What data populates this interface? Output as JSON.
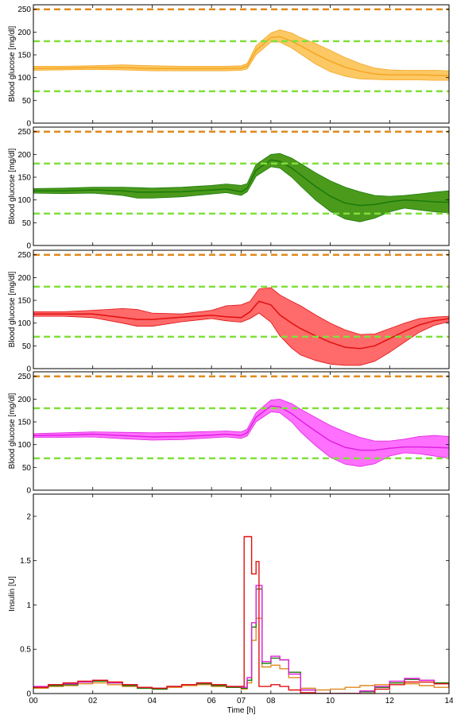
{
  "chart_data": [
    {
      "type": "area",
      "ylabel": "Blood glucose [mg/dl]",
      "ylim": [
        0,
        260
      ],
      "yticks": [
        0,
        50,
        100,
        150,
        200,
        250
      ],
      "xlim": [
        0,
        14
      ],
      "xticks": [
        0,
        2,
        4,
        6,
        7,
        8,
        10,
        12,
        14
      ],
      "xticklabels_shown": false,
      "color": "#f5a623",
      "fill": "#fcc864",
      "thresholds": [
        {
          "value": 250,
          "color": "#e08a1e"
        },
        {
          "value": 180,
          "color": "#7fe03a"
        },
        {
          "value": 70,
          "color": "#7fe03a"
        }
      ],
      "x": [
        0,
        1,
        2,
        3,
        4,
        5,
        6,
        6.5,
        7,
        7.2,
        7.5,
        8,
        8.3,
        8.7,
        9,
        9.5,
        10,
        10.5,
        11,
        11.5,
        12,
        12.5,
        13,
        13.5,
        14
      ],
      "mean": [
        120,
        121,
        122,
        122,
        120,
        120,
        120,
        120,
        121,
        125,
        160,
        188,
        190,
        180,
        170,
        152,
        136,
        123,
        114,
        108,
        106,
        106,
        106,
        105,
        104
      ],
      "lower": [
        116,
        117,
        118,
        117,
        115,
        115,
        115,
        115,
        116,
        119,
        150,
        178,
        178,
        165,
        152,
        130,
        113,
        103,
        97,
        96,
        95,
        95,
        95,
        94,
        94
      ],
      "upper": [
        125,
        125,
        126,
        128,
        126,
        125,
        125,
        125,
        126,
        131,
        170,
        198,
        205,
        198,
        188,
        175,
        160,
        144,
        131,
        121,
        117,
        116,
        116,
        116,
        115
      ]
    },
    {
      "type": "area",
      "ylabel": "Blood glucose [mg/dl]",
      "ylim": [
        0,
        260
      ],
      "yticks": [
        0,
        50,
        100,
        150,
        200,
        250
      ],
      "xlim": [
        0,
        14
      ],
      "xticks": [
        0,
        2,
        4,
        6,
        7,
        8,
        10,
        12,
        14
      ],
      "xticklabels_shown": false,
      "color": "#1a7a0a",
      "fill": "#4c9a1c",
      "thresholds": [
        {
          "value": 250,
          "color": "#e08a1e"
        },
        {
          "value": 180,
          "color": "#7fe03a"
        },
        {
          "value": 70,
          "color": "#7fe03a"
        }
      ],
      "x": [
        0,
        1,
        2,
        3,
        3.5,
        4,
        5,
        6,
        6.5,
        7,
        7.2,
        7.5,
        8,
        8.3,
        8.7,
        9,
        9.5,
        10,
        10.5,
        11,
        11.5,
        12,
        12.5,
        13,
        13.5,
        14
      ],
      "mean": [
        120,
        120,
        122,
        120,
        117,
        117,
        118,
        122,
        124,
        118,
        126,
        165,
        188,
        185,
        170,
        155,
        130,
        108,
        93,
        88,
        90,
        96,
        100,
        98,
        96,
        95
      ],
      "lower": [
        115,
        114,
        115,
        110,
        104,
        104,
        107,
        113,
        116,
        110,
        118,
        152,
        173,
        170,
        150,
        131,
        100,
        75,
        58,
        52,
        60,
        74,
        82,
        78,
        74,
        72
      ],
      "upper": [
        125,
        126,
        128,
        128,
        127,
        126,
        128,
        132,
        135,
        132,
        136,
        178,
        200,
        202,
        192,
        180,
        160,
        142,
        128,
        118,
        110,
        108,
        110,
        113,
        117,
        120
      ]
    },
    {
      "type": "area",
      "ylabel": "Blood glucose [mg/dl]",
      "ylim": [
        0,
        260
      ],
      "yticks": [
        0,
        50,
        100,
        150,
        200,
        250
      ],
      "xlim": [
        0,
        14
      ],
      "xticks": [
        0,
        2,
        4,
        6,
        7,
        8,
        10,
        12,
        14
      ],
      "xticklabels_shown": false,
      "color": "#e01010",
      "fill": "#ff6a6a",
      "thresholds": [
        {
          "value": 250,
          "color": "#e08a1e"
        },
        {
          "value": 180,
          "color": "#7fe03a"
        },
        {
          "value": 70,
          "color": "#7fe03a"
        }
      ],
      "x": [
        0,
        1,
        2,
        3,
        3.5,
        4,
        5,
        6,
        6.5,
        7,
        7.3,
        7.6,
        8,
        8.3,
        8.7,
        9,
        9.5,
        10,
        10.5,
        11,
        11.5,
        12,
        12.5,
        13,
        13.5,
        14
      ],
      "mean": [
        120,
        120,
        120,
        112,
        108,
        108,
        113,
        117,
        114,
        112,
        125,
        148,
        140,
        118,
        100,
        88,
        72,
        58,
        47,
        44,
        50,
        66,
        82,
        96,
        105,
        110
      ],
      "lower": [
        115,
        115,
        112,
        100,
        93,
        93,
        103,
        110,
        105,
        102,
        110,
        122,
        102,
        72,
        45,
        30,
        18,
        10,
        7,
        7,
        16,
        36,
        58,
        80,
        95,
        103
      ],
      "upper": [
        125,
        125,
        128,
        132,
        130,
        122,
        120,
        128,
        138,
        140,
        148,
        175,
        178,
        162,
        148,
        138,
        118,
        100,
        85,
        75,
        76,
        88,
        100,
        110,
        113,
        115
      ]
    },
    {
      "type": "area",
      "ylabel": "Blood glucose [mg/dl]",
      "ylim": [
        0,
        260
      ],
      "yticks": [
        0,
        50,
        100,
        150,
        200,
        250
      ],
      "xlim": [
        0,
        14
      ],
      "xticks": [
        0,
        2,
        4,
        6,
        7,
        8,
        10,
        12,
        14
      ],
      "xticklabels_shown": false,
      "color": "#e020e0",
      "fill": "#ff70ff",
      "thresholds": [
        {
          "value": 250,
          "color": "#e08a1e"
        },
        {
          "value": 180,
          "color": "#7fe03a"
        },
        {
          "value": 70,
          "color": "#7fe03a"
        }
      ],
      "x": [
        0,
        1,
        2,
        3,
        4,
        5,
        6,
        6.5,
        7,
        7.2,
        7.5,
        8,
        8.3,
        8.7,
        9,
        9.5,
        10,
        10.5,
        11,
        11.5,
        12,
        12.5,
        13,
        13.5,
        14
      ],
      "mean": [
        120,
        121,
        123,
        120,
        117,
        118,
        121,
        123,
        120,
        126,
        160,
        185,
        183,
        168,
        153,
        130,
        108,
        94,
        88,
        88,
        92,
        95,
        95,
        94,
        93
      ],
      "lower": [
        116,
        116,
        117,
        113,
        110,
        111,
        115,
        117,
        114,
        119,
        150,
        172,
        170,
        150,
        128,
        98,
        72,
        57,
        52,
        58,
        75,
        82,
        80,
        75,
        70
      ],
      "upper": [
        124,
        126,
        128,
        127,
        126,
        127,
        129,
        130,
        128,
        134,
        170,
        198,
        200,
        190,
        178,
        160,
        142,
        128,
        116,
        108,
        108,
        112,
        118,
        120,
        118
      ]
    },
    {
      "type": "line",
      "step": true,
      "ylabel": "Insulin [U]",
      "xlabel": "Time [h]",
      "ylim": [
        0,
        2.25
      ],
      "yticks": [
        0,
        0.5,
        1,
        1.5,
        2
      ],
      "yticklabels": [
        "0",
        "0.5",
        "1",
        "1.5",
        "2"
      ],
      "xlim": [
        0,
        14
      ],
      "xticks": [
        0,
        2,
        4,
        6,
        7,
        8,
        10,
        12,
        14
      ],
      "xticklabels": [
        "00",
        "02",
        "04",
        "06",
        "07",
        "08",
        "10",
        "12",
        "14"
      ],
      "series": [
        {
          "color": "#e08a1e",
          "x": [
            0,
            0.5,
            1,
            1.5,
            2,
            2.5,
            3,
            3.5,
            4,
            4.5,
            5,
            5.5,
            6,
            6.5,
            7,
            7.2,
            7.35,
            7.5,
            7.7,
            8,
            8.3,
            8.6,
            9,
            9.5,
            10,
            10.5,
            11,
            11.5,
            12,
            12.5,
            13,
            13.5,
            14
          ],
          "y": [
            0.06,
            0.08,
            0.09,
            0.11,
            0.12,
            0.1,
            0.08,
            0.06,
            0.05,
            0.07,
            0.09,
            0.1,
            0.08,
            0.07,
            0.05,
            0.12,
            0.6,
            0.85,
            0.3,
            0.32,
            0.28,
            0.18,
            0.06,
            0.04,
            0.05,
            0.07,
            0.09,
            0.1,
            0.12,
            0.11,
            0.09,
            0.07,
            0.06
          ]
        },
        {
          "color": "#1a7a0a",
          "x": [
            0,
            0.5,
            1,
            1.5,
            2,
            2.5,
            3,
            3.5,
            4,
            4.5,
            5,
            5.5,
            6,
            6.5,
            7,
            7.2,
            7.35,
            7.5,
            7.7,
            8,
            8.3,
            8.6,
            9,
            9.5,
            10,
            10.5,
            11,
            11.5,
            12,
            12.5,
            13,
            13.5,
            14
          ],
          "y": [
            0.07,
            0.09,
            0.1,
            0.13,
            0.14,
            0.12,
            0.09,
            0.06,
            0.05,
            0.08,
            0.1,
            0.11,
            0.09,
            0.07,
            0.06,
            0.15,
            0.75,
            1.18,
            0.34,
            0.4,
            0.38,
            0.24,
            0.04,
            0.0,
            0.0,
            0.0,
            0.02,
            0.07,
            0.12,
            0.16,
            0.15,
            0.12,
            0.08
          ]
        },
        {
          "color": "#e020e0",
          "x": [
            0,
            0.5,
            1,
            1.5,
            2,
            2.5,
            3,
            3.5,
            4,
            4.5,
            5,
            5.5,
            6,
            6.5,
            7,
            7.2,
            7.35,
            7.5,
            7.7,
            8,
            8.3,
            8.6,
            9,
            9.5,
            10,
            10.5,
            11,
            11.5,
            12,
            12.5,
            13,
            13.5,
            14
          ],
          "y": [
            0.08,
            0.1,
            0.11,
            0.13,
            0.15,
            0.12,
            0.1,
            0.07,
            0.06,
            0.08,
            0.1,
            0.12,
            0.1,
            0.08,
            0.07,
            0.18,
            0.8,
            1.22,
            0.36,
            0.42,
            0.38,
            0.22,
            0.04,
            0.0,
            0.0,
            0.0,
            0.03,
            0.08,
            0.14,
            0.17,
            0.15,
            0.11,
            0.08
          ]
        },
        {
          "color": "#e01010",
          "x": [
            0,
            0.5,
            1,
            1.5,
            2,
            2.5,
            3,
            3.5,
            4,
            4.5,
            5,
            5.5,
            6,
            6.5,
            7,
            7.1,
            7.35,
            7.5,
            7.6,
            8,
            8.3,
            8.6,
            9,
            9.5,
            10,
            10.5,
            11,
            11.5,
            12,
            12.5,
            13,
            13.5,
            14
          ],
          "y": [
            0.07,
            0.1,
            0.12,
            0.14,
            0.15,
            0.13,
            0.1,
            0.07,
            0.06,
            0.08,
            0.1,
            0.12,
            0.1,
            0.08,
            0.08,
            1.77,
            1.35,
            1.49,
            0.08,
            0.1,
            0.08,
            0.04,
            0.01,
            0.0,
            0.0,
            0.0,
            0.0,
            0.05,
            0.1,
            0.13,
            0.13,
            0.11,
            0.07
          ]
        }
      ]
    }
  ]
}
